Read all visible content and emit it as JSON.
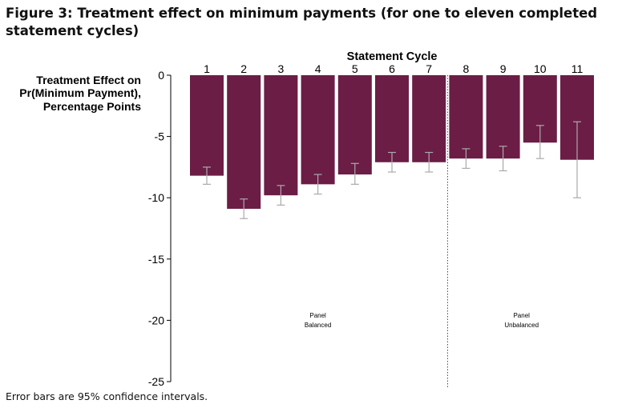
{
  "figure": {
    "title": "Figure 3: Treatment effect on minimum payments (for one to eleven completed statement cycles)",
    "footnote": "Error bars are 95% confidence intervals."
  },
  "chart_data": {
    "type": "bar",
    "title": "Statement Cycle",
    "ylabel": [
      "Treatment Effect on",
      "Pr(Minimum Payment),",
      "Percentage Points"
    ],
    "xlabel": "",
    "categories": [
      "1",
      "2",
      "3",
      "4",
      "5",
      "6",
      "7",
      "8",
      "9",
      "10",
      "11"
    ],
    "values": [
      -8.2,
      -10.9,
      -9.8,
      -8.9,
      -8.1,
      -7.1,
      -7.1,
      -6.8,
      -6.8,
      -5.5,
      -6.9
    ],
    "ci_low": [
      -8.9,
      -11.7,
      -10.6,
      -9.7,
      -8.9,
      -7.9,
      -7.9,
      -7.6,
      -7.8,
      -6.8,
      -10.0
    ],
    "ci_high": [
      -7.5,
      -10.1,
      -9.0,
      -8.1,
      -7.2,
      -6.3,
      -6.3,
      -6.0,
      -5.8,
      -4.1,
      -3.8
    ],
    "ylim": [
      -25,
      0
    ],
    "yticks": [
      0,
      -5,
      -10,
      -15,
      -20,
      -25
    ],
    "ytick_labels": [
      "0",
      "-5",
      "-10",
      "-15",
      "-20",
      "-25"
    ],
    "grid": false,
    "bar_color": "#6b1d45",
    "error_bar_color": "#aaaaaa",
    "panels": [
      {
        "label_line1": "Panel",
        "label_line2": "Balanced",
        "categories": [
          "1",
          "2",
          "3",
          "4",
          "5",
          "6",
          "7"
        ]
      },
      {
        "label_line1": "Panel",
        "label_line2": "Unbalanced",
        "categories": [
          "8",
          "9",
          "10",
          "11"
        ]
      }
    ]
  }
}
